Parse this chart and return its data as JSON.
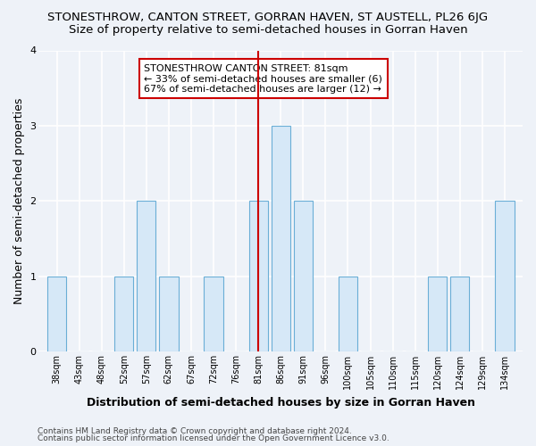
{
  "title_line1": "STONESTHROW, CANTON STREET, GORRAN HAVEN, ST AUSTELL, PL26 6JG",
  "title_line2": "Size of property relative to semi-detached houses in Gorran Haven",
  "xlabel": "Distribution of semi-detached houses by size in Gorran Haven",
  "ylabel": "Number of semi-detached properties",
  "footer1": "Contains HM Land Registry data © Crown copyright and database right 2024.",
  "footer2": "Contains public sector information licensed under the Open Government Licence v3.0.",
  "bins": [
    38,
    43,
    48,
    52,
    57,
    62,
    67,
    72,
    76,
    81,
    86,
    91,
    96,
    100,
    105,
    110,
    115,
    120,
    124,
    129,
    134
  ],
  "bin_labels": [
    "38sqm",
    "43sqm",
    "48sqm",
    "52sqm",
    "57sqm",
    "62sqm",
    "67sqm",
    "72sqm",
    "76sqm",
    "81sqm",
    "86sqm",
    "91sqm",
    "96sqm",
    "100sqm",
    "105sqm",
    "110sqm",
    "115sqm",
    "120sqm",
    "124sqm",
    "129sqm",
    "134sqm"
  ],
  "counts": [
    1,
    0,
    0,
    1,
    2,
    1,
    0,
    1,
    0,
    2,
    3,
    2,
    0,
    1,
    0,
    0,
    0,
    1,
    1,
    0,
    2
  ],
  "bar_color": "#d6e8f7",
  "bar_edge_color": "#6aaed6",
  "property_size_idx": 9,
  "property_label": "STONESTHROW CANTON STREET: 81sqm",
  "smaller_pct": "33%",
  "smaller_count": 6,
  "larger_pct": "67%",
  "larger_count": 12,
  "vline_color": "#cc0000",
  "background_color": "#eef2f8",
  "grid_color": "#ffffff",
  "ylim": [
    0,
    4
  ],
  "yticks": [
    0,
    1,
    2,
    3,
    4
  ],
  "title_fontsize": 9.5,
  "subtitle_fontsize": 9.5,
  "axis_label_fontsize": 9,
  "tick_fontsize": 7,
  "footer_fontsize": 6.5,
  "annotation_fontsize": 8
}
